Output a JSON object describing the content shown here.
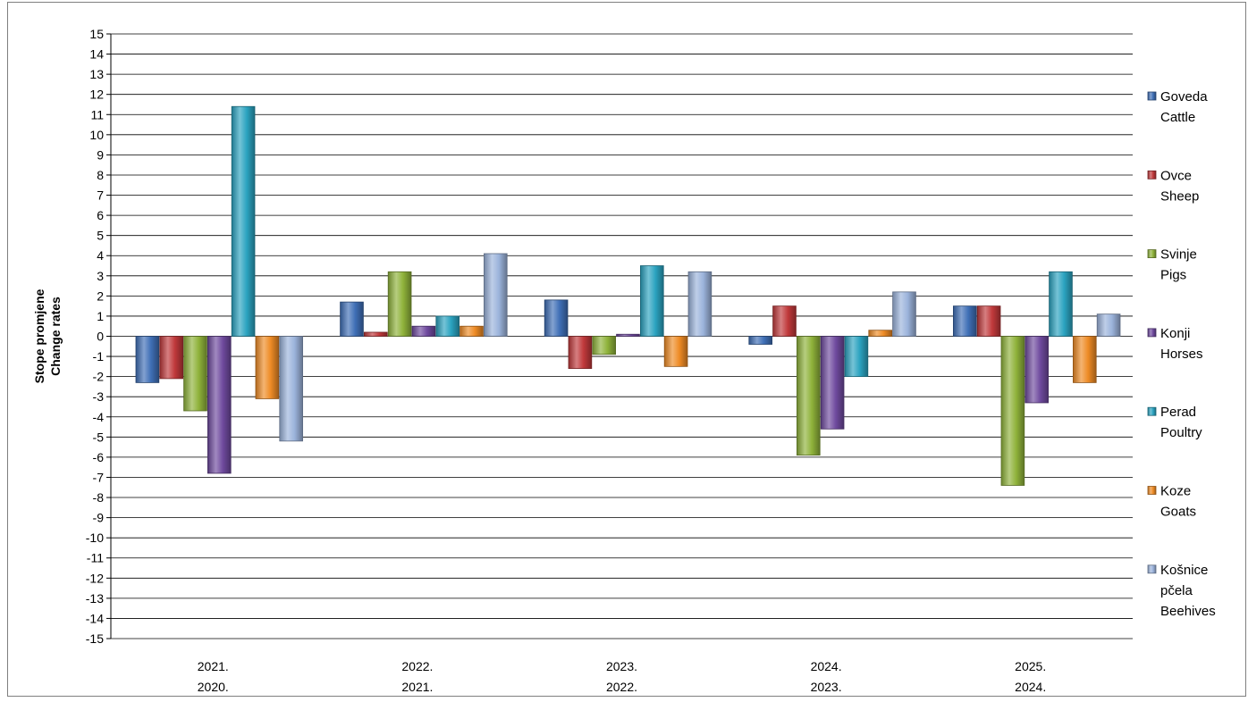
{
  "chart_data": {
    "type": "bar",
    "ylabel_lines": [
      "Stope promjene",
      "Change rates"
    ],
    "categories": [
      [
        "2021.",
        "2020."
      ],
      [
        "2022.",
        "2021."
      ],
      [
        "2023.",
        "2022."
      ],
      [
        "2024.",
        "2023."
      ],
      [
        "2025.",
        "2024."
      ]
    ],
    "ylim": [
      -15,
      15
    ],
    "ytick_step": 1,
    "grid": true,
    "legend_position": "right",
    "series": [
      {
        "name_lines": [
          "Goveda",
          "Cattle"
        ],
        "color": "#3f6fb6",
        "values": [
          -2.3,
          1.7,
          1.8,
          -0.4,
          1.5
        ]
      },
      {
        "name_lines": [
          "Ovce",
          "Sheep"
        ],
        "color": "#c0393b",
        "values": [
          -2.1,
          0.2,
          -1.6,
          1.5,
          1.5
        ]
      },
      {
        "name_lines": [
          "Svinje",
          "Pigs"
        ],
        "color": "#8fb23a",
        "values": [
          -3.7,
          3.2,
          -0.9,
          -5.9,
          -7.4
        ]
      },
      {
        "name_lines": [
          "Konji",
          "Horses"
        ],
        "color": "#6f4a9e",
        "values": [
          -6.8,
          0.5,
          0.1,
          -4.6,
          -3.3
        ]
      },
      {
        "name_lines": [
          "Perad",
          "Poultry"
        ],
        "color": "#2ba3c0",
        "values": [
          11.4,
          1.0,
          3.5,
          -2.0,
          3.2
        ]
      },
      {
        "name_lines": [
          "Koze",
          "Goats"
        ],
        "color": "#ee8b25",
        "values": [
          -3.1,
          0.5,
          -1.5,
          0.3,
          -2.3
        ]
      },
      {
        "name_lines": [
          "Košnice",
          "pčela",
          "Beehives"
        ],
        "color": "#9bb3db",
        "values": [
          -5.2,
          4.1,
          3.2,
          2.2,
          1.1
        ]
      }
    ]
  }
}
